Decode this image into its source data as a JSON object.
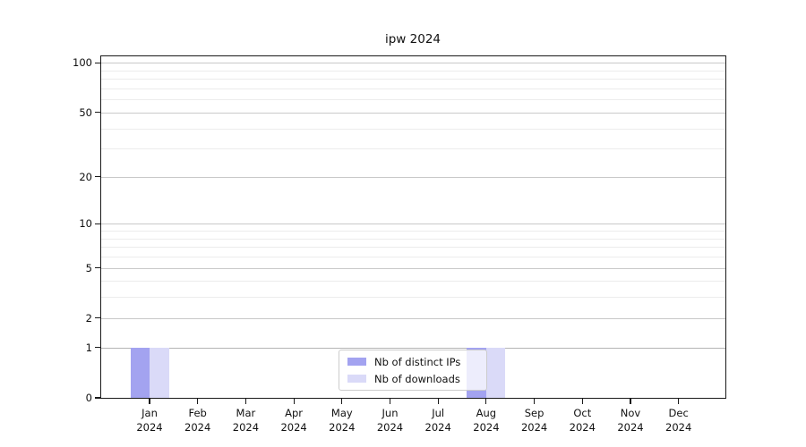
{
  "chart_data": {
    "type": "bar",
    "title": "ipw 2024",
    "categories": [
      "Jan 2024",
      "Feb 2024",
      "Mar 2024",
      "Apr 2024",
      "May 2024",
      "Jun 2024",
      "Jul 2024",
      "Aug 2024",
      "Sep 2024",
      "Oct 2024",
      "Nov 2024",
      "Dec 2024"
    ],
    "series": [
      {
        "name": "Nb of distinct IPs",
        "color": "#a3a3f0",
        "values": [
          1,
          0,
          0,
          0,
          0,
          0,
          0,
          1,
          0,
          0,
          0,
          0
        ]
      },
      {
        "name": "Nb of downloads",
        "color": "#dadaf8",
        "values": [
          1,
          0,
          0,
          0,
          0,
          0,
          0,
          1,
          0,
          0,
          0,
          0
        ]
      }
    ],
    "xlabel": "",
    "ylabel": "",
    "yscale": "log1p",
    "ylim": [
      0,
      111
    ],
    "y_major_ticks": [
      0,
      1,
      2,
      5,
      10,
      20,
      50,
      100
    ],
    "y_minor_ticks": [
      3,
      4,
      6,
      7,
      8,
      9,
      30,
      40,
      60,
      70,
      80,
      90
    ],
    "grid": "horizontal",
    "legend_position": "lower center",
    "colors": {
      "axis": "#1a1a1a",
      "major_grid": "#c9c9c9",
      "minor_grid": "#ececec",
      "unit_line": "#b4b4b4",
      "background": "#ffffff"
    }
  }
}
